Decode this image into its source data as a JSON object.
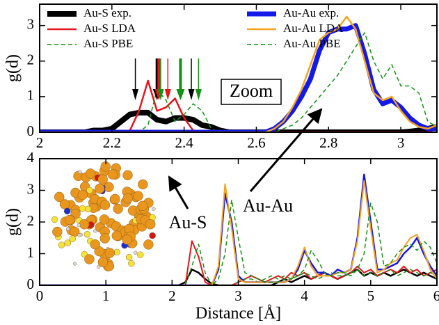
{
  "chart_data": [
    {
      "type": "line",
      "ylabel": "g(d)",
      "legend": "top",
      "grid": false,
      "xlim": [
        2,
        3.1
      ],
      "ylim": [
        0,
        3.6
      ],
      "xticks": [
        2,
        2.2,
        2.4,
        2.6,
        2.8,
        3
      ],
      "yticks": [
        0,
        1,
        2,
        3
      ],
      "annotations": [
        "Zoom"
      ],
      "arrows": [
        {
          "x": 2.265,
          "color": "#000000",
          "width": 1.5
        },
        {
          "x": 2.325,
          "color": "#000000",
          "width": 4
        },
        {
          "x": 2.33,
          "color": "#e8141a",
          "width": 4
        },
        {
          "x": 2.335,
          "color": "#139113",
          "width": 1.5
        },
        {
          "x": 2.355,
          "color": "#e8141a",
          "width": 1.5
        },
        {
          "x": 2.39,
          "color": "#139113",
          "width": 4
        },
        {
          "x": 2.42,
          "color": "#000000",
          "width": 1.5
        },
        {
          "x": 2.44,
          "color": "#139113",
          "width": 1.5
        }
      ],
      "x": [
        2,
        2.025,
        2.05,
        2.075,
        2.1,
        2.125,
        2.15,
        2.175,
        2.2,
        2.225,
        2.25,
        2.275,
        2.3,
        2.325,
        2.35,
        2.375,
        2.4,
        2.425,
        2.45,
        2.475,
        2.5,
        2.525,
        2.55,
        2.575,
        2.6,
        2.625,
        2.65,
        2.675,
        2.7,
        2.725,
        2.75,
        2.775,
        2.8,
        2.825,
        2.85,
        2.875,
        2.9,
        2.925,
        2.95,
        2.975,
        3,
        3.025,
        3.05,
        3.075,
        3.1
      ],
      "series": [
        {
          "name": "Au-S exp.",
          "color": "#000000",
          "linewidth": 8,
          "linestyle": "solid",
          "values": [
            0,
            0,
            0,
            0,
            0,
            0,
            0.05,
            0.05,
            0.1,
            0.3,
            0.5,
            0.55,
            0.55,
            0.35,
            0.3,
            0.4,
            0.4,
            0.35,
            0.2,
            0.15,
            0.05,
            0,
            0,
            0,
            0,
            0,
            0,
            0,
            0,
            0,
            0,
            0,
            0,
            0,
            0,
            0,
            0,
            0,
            0,
            0,
            0,
            0.02,
            0.05,
            0.1,
            0.15
          ]
        },
        {
          "name": "Au-S LDA",
          "color": "#e8141a",
          "linewidth": 2.5,
          "linestyle": "solid",
          "values": [
            0,
            0,
            0,
            0,
            0,
            0,
            0,
            0,
            0,
            0,
            0.05,
            0.6,
            1.45,
            0.6,
            0.7,
            0.95,
            0.4,
            0.05,
            0,
            0,
            0,
            0,
            0,
            0,
            0,
            0,
            0,
            0,
            0,
            0,
            0,
            0,
            0,
            0,
            0,
            0,
            0,
            0,
            0,
            0,
            0,
            0,
            0,
            0,
            0.1
          ]
        },
        {
          "name": "Au-S PBE",
          "color": "#139113",
          "linewidth": 1.5,
          "linestyle": "dashed",
          "values": [
            0,
            0,
            0,
            0,
            0,
            0,
            0,
            0,
            0,
            0,
            0,
            0,
            0.2,
            1.2,
            0.9,
            0.3,
            0.5,
            0.8,
            0.6,
            0.1,
            0,
            0,
            0,
            0,
            0,
            0,
            0,
            0,
            0,
            0,
            0,
            0,
            0,
            0,
            0,
            0,
            0,
            0,
            0,
            0,
            0,
            0,
            0,
            0,
            0
          ]
        },
        {
          "name": "Au-Au exp.",
          "color": "#1418e8",
          "linewidth": 7,
          "linestyle": "solid",
          "values": [
            0,
            0,
            0,
            0,
            0,
            0,
            0,
            0,
            0,
            0,
            0,
            0,
            0,
            0,
            0,
            0,
            0,
            0,
            0,
            0,
            0,
            0,
            0,
            0,
            0,
            0,
            0.1,
            0.3,
            0.6,
            1.0,
            1.5,
            2.3,
            2.8,
            2.9,
            2.9,
            3.0,
            2.2,
            1.2,
            0.8,
            0.9,
            0.7,
            0.4,
            0.2,
            0.1,
            0.1
          ]
        },
        {
          "name": "Au-Au LDA",
          "color": "#f5a41c",
          "linewidth": 2.5,
          "linestyle": "solid",
          "values": [
            0,
            0,
            0,
            0,
            0,
            0,
            0,
            0,
            0,
            0,
            0,
            0,
            0,
            0,
            0,
            0,
            0,
            0,
            0,
            0,
            0,
            0,
            0,
            0,
            0,
            0,
            0.1,
            0.3,
            0.7,
            1.2,
            1.9,
            2.6,
            2.8,
            2.9,
            3.25,
            2.9,
            2.0,
            1.1,
            0.9,
            1.0,
            0.6,
            0.3,
            0.15,
            0.1,
            0.2
          ]
        },
        {
          "name": "Au-Au PBE",
          "color": "#139113",
          "linewidth": 1.5,
          "linestyle": "dashed",
          "values": [
            0,
            0,
            0,
            0,
            0,
            0,
            0,
            0,
            0,
            0,
            0,
            0,
            0,
            0,
            0,
            0,
            0,
            0,
            0,
            0,
            0,
            0,
            0,
            0,
            0,
            0,
            0,
            0.1,
            0.2,
            0.4,
            0.7,
            1.0,
            1.3,
            1.6,
            2.0,
            2.4,
            2.8,
            2.0,
            1.5,
            1.9,
            1.3,
            1.3,
            1.1,
            0.3,
            0.15
          ]
        }
      ]
    },
    {
      "type": "line",
      "xlabel": "Distance [Å]",
      "ylabel": "g(d)",
      "grid": false,
      "xlim": [
        0,
        6
      ],
      "ylim": [
        0,
        4
      ],
      "xticks": [
        0,
        1,
        2,
        3,
        4,
        5,
        6
      ],
      "yticks": [
        0,
        1,
        2,
        3,
        4
      ],
      "annotations": [
        "Au-S",
        "Au-Au"
      ],
      "x": [
        0,
        0.1,
        0.2,
        0.3,
        0.4,
        0.5,
        0.6,
        0.7,
        0.8,
        0.9,
        1,
        1.1,
        1.2,
        1.3,
        1.4,
        1.5,
        1.6,
        1.7,
        1.8,
        1.9,
        2,
        2.1,
        2.2,
        2.3,
        2.4,
        2.5,
        2.6,
        2.7,
        2.8,
        2.9,
        3,
        3.1,
        3.2,
        3.3,
        3.4,
        3.5,
        3.6,
        3.7,
        3.8,
        3.9,
        4,
        4.1,
        4.2,
        4.3,
        4.4,
        4.5,
        4.6,
        4.7,
        4.8,
        4.9,
        5,
        5.1,
        5.2,
        5.3,
        5.4,
        5.5,
        5.6,
        5.7,
        5.8,
        5.9,
        6
      ],
      "series": [
        {
          "color": "#000000",
          "linewidth": 2.5,
          "linestyle": "solid",
          "values": [
            0,
            0,
            0,
            0,
            0,
            0,
            0,
            0,
            0,
            0,
            0,
            0,
            0,
            0,
            0,
            0,
            0,
            0,
            0,
            0,
            0,
            0,
            0.1,
            0.5,
            0.4,
            0.2,
            0.05,
            0,
            0,
            0,
            0,
            0,
            0,
            0,
            0,
            0,
            0.1,
            0.2,
            0.1,
            0.2,
            0.3,
            0.2,
            0.3,
            0.4,
            0.3,
            0.2,
            0.3,
            0.4,
            0.5,
            0.3,
            0.4,
            0.3,
            0.4,
            0.3,
            0.4,
            0.5,
            0.4,
            0.3,
            0.4,
            0.3,
            0.2
          ]
        },
        {
          "color": "#e8141a",
          "linewidth": 2,
          "linestyle": "solid",
          "values": [
            0,
            0,
            0,
            0,
            0,
            0,
            0,
            0,
            0,
            0,
            0,
            0,
            0,
            0,
            0,
            0,
            0,
            0,
            0,
            0,
            0,
            0,
            0,
            1.4,
            0.9,
            0.1,
            0,
            0,
            0,
            0,
            0.1,
            0.2,
            0.3,
            0.2,
            0.1,
            0.2,
            0.3,
            0.2,
            0.4,
            0.3,
            0.4,
            0.2,
            0.3,
            0.4,
            0.3,
            0.2,
            0.3,
            0.4,
            0.6,
            0.4,
            0.5,
            0.3,
            0.4,
            0.5,
            0.4,
            0.6,
            0.4,
            0.5,
            0.3,
            0.4,
            0.5
          ]
        },
        {
          "color": "#139113",
          "linewidth": 1.5,
          "linestyle": "dashed",
          "values": [
            0,
            0,
            0,
            0,
            0,
            0,
            0,
            0,
            0,
            0,
            0,
            0,
            0,
            0,
            0,
            0,
            0,
            0,
            0,
            0,
            0,
            0,
            0,
            0.6,
            1.3,
            0.4,
            0,
            0,
            0,
            0,
            0.1,
            0.2,
            0.2,
            0.1,
            0.2,
            0.3,
            0.2,
            0.3,
            0.2,
            0.3,
            0.4,
            0.3,
            0.2,
            0.3,
            0.4,
            0.3,
            0.3,
            0.4,
            0.5,
            0.3,
            0.4,
            0.3,
            0.4,
            0.5,
            0.3,
            0.4,
            0.5,
            0.4,
            0.3,
            0.4,
            0.3
          ]
        },
        {
          "color": "#1418e8",
          "linewidth": 2.5,
          "linestyle": "solid",
          "values": [
            0,
            0,
            0,
            0,
            0,
            0,
            0,
            0,
            0,
            0,
            0,
            0,
            0,
            0,
            0,
            0,
            0,
            0,
            0,
            0,
            0,
            0,
            0,
            0,
            0,
            0,
            0,
            0.5,
            2.9,
            2.0,
            0.3,
            0.1,
            0.1,
            0.1,
            0.1,
            0.1,
            0.1,
            0.1,
            0.2,
            0.5,
            1.1,
            0.7,
            0.4,
            0.4,
            0.3,
            0.5,
            0.4,
            0.5,
            1.5,
            3.5,
            2.0,
            0.5,
            0.5,
            0.6,
            0.7,
            1.0,
            1.2,
            1.5,
            1.0,
            0.6,
            0.3
          ]
        },
        {
          "color": "#f5a41c",
          "linewidth": 2,
          "linestyle": "solid",
          "values": [
            0,
            0,
            0,
            0,
            0,
            0,
            0,
            0,
            0,
            0,
            0,
            0,
            0,
            0,
            0,
            0,
            0,
            0,
            0,
            0,
            0,
            0,
            0,
            0,
            0,
            0,
            0,
            0.6,
            3.2,
            1.8,
            0.2,
            0.1,
            0.1,
            0.1,
            0.1,
            0.1,
            0.1,
            0.1,
            0.2,
            0.6,
            1.2,
            0.6,
            0.3,
            0.3,
            0.3,
            0.4,
            0.4,
            0.5,
            1.4,
            3.3,
            1.8,
            0.4,
            0.5,
            0.7,
            0.8,
            1.2,
            1.5,
            1.6,
            1.1,
            0.5,
            0.2
          ]
        },
        {
          "color": "#139113",
          "linewidth": 1.5,
          "linestyle": "dashed",
          "values": [
            0,
            0,
            0,
            0,
            0,
            0,
            0,
            0,
            0,
            0,
            0,
            0,
            0,
            0,
            0,
            0,
            0,
            0,
            0,
            0,
            0,
            0,
            0,
            0,
            0,
            0,
            0,
            0.2,
            1.0,
            2.7,
            1.5,
            0.4,
            0.3,
            0.2,
            0.1,
            0.1,
            0.1,
            0.2,
            0.2,
            0.3,
            0.5,
            1.1,
            0.8,
            0.4,
            0.3,
            0.4,
            0.4,
            0.3,
            0.5,
            1.0,
            2.6,
            2.0,
            0.6,
            0.7,
            1.0,
            1.2,
            1.3,
            1.1,
            1.4,
            1.2,
            0.7
          ]
        }
      ]
    }
  ]
}
